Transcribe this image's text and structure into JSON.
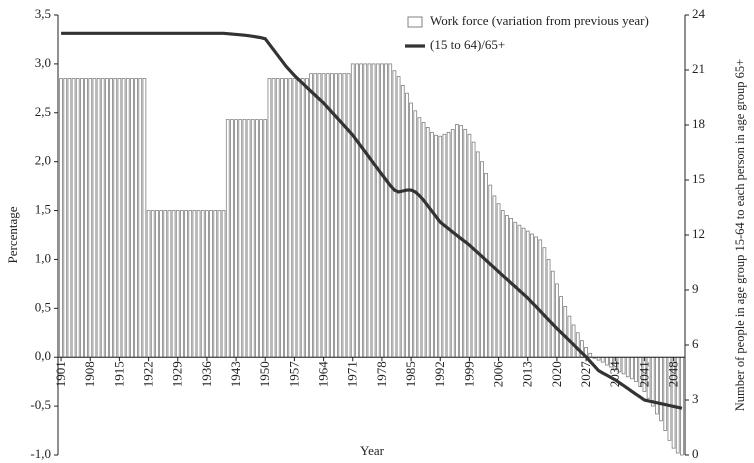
{
  "chart_data": {
    "type": "bar",
    "x_label": "Year",
    "y_label": "Percentage",
    "y2_label": "Number of people in age group 15-64 to each person in age group 65+",
    "categories": [
      "1901",
      null,
      null,
      null,
      null,
      null,
      null,
      "1908",
      null,
      null,
      null,
      null,
      null,
      null,
      "1915",
      null,
      null,
      null,
      null,
      null,
      null,
      "1922",
      null,
      null,
      null,
      null,
      null,
      null,
      "1929",
      null,
      null,
      null,
      null,
      null,
      null,
      "1936",
      null,
      null,
      null,
      null,
      null,
      null,
      "1943",
      null,
      null,
      null,
      null,
      null,
      null,
      "1950",
      null,
      null,
      null,
      null,
      null,
      null,
      "1957",
      null,
      null,
      null,
      null,
      null,
      null,
      "1964",
      null,
      null,
      null,
      null,
      null,
      null,
      "1971",
      null,
      null,
      null,
      null,
      null,
      null,
      "1978",
      null,
      null,
      null,
      null,
      null,
      null,
      "1985",
      null,
      null,
      null,
      null,
      null,
      null,
      "1992",
      null,
      null,
      null,
      null,
      null,
      null,
      "1999",
      null,
      null,
      null,
      null,
      null,
      null,
      "2006",
      null,
      null,
      null,
      null,
      null,
      null,
      "2013",
      null,
      null,
      null,
      null,
      null,
      null,
      "2020",
      null,
      null,
      null,
      null,
      null,
      null,
      "2027",
      null,
      null,
      null,
      null,
      null,
      null,
      "2034",
      null,
      null,
      null,
      null,
      null,
      null,
      "2041",
      null,
      null,
      null,
      null,
      null,
      null,
      "2048",
      null,
      null
    ],
    "series": [
      {
        "name": "Work force (variation from previous year)",
        "type": "bar",
        "color": "#808080",
        "values": [
          2.85,
          2.85,
          2.85,
          2.85,
          2.85,
          2.85,
          2.85,
          2.85,
          2.85,
          2.85,
          2.85,
          2.85,
          2.85,
          2.85,
          2.85,
          2.85,
          2.85,
          2.85,
          2.85,
          2.85,
          2.85,
          1.5,
          1.5,
          1.5,
          1.5,
          1.5,
          1.5,
          1.5,
          1.5,
          1.5,
          1.5,
          1.5,
          1.5,
          1.5,
          1.5,
          1.5,
          1.5,
          1.5,
          1.5,
          1.5,
          2.43,
          2.43,
          2.43,
          2.43,
          2.43,
          2.43,
          2.43,
          2.43,
          2.43,
          2.43,
          2.85,
          2.85,
          2.85,
          2.85,
          2.85,
          2.85,
          2.85,
          2.85,
          2.85,
          2.85,
          2.9,
          2.9,
          2.9,
          2.9,
          2.9,
          2.9,
          2.9,
          2.9,
          2.9,
          2.9,
          3.0,
          3.0,
          3.0,
          3.0,
          3.0,
          3.0,
          3.0,
          3.0,
          3.0,
          3.0,
          2.93,
          2.87,
          2.78,
          2.7,
          2.6,
          2.52,
          2.45,
          2.4,
          2.35,
          2.3,
          2.27,
          2.26,
          2.28,
          2.3,
          2.33,
          2.38,
          2.37,
          2.33,
          2.28,
          2.2,
          2.1,
          2.0,
          1.88,
          1.76,
          1.65,
          1.57,
          1.5,
          1.45,
          1.42,
          1.38,
          1.35,
          1.32,
          1.29,
          1.26,
          1.23,
          1.2,
          1.12,
          1.0,
          0.88,
          0.75,
          0.62,
          0.52,
          0.42,
          0.33,
          0.25,
          0.17,
          0.1,
          0.04,
          -0.01,
          -0.03,
          -0.05,
          -0.08,
          -0.1,
          -0.13,
          -0.15,
          -0.17,
          -0.2,
          -0.22,
          -0.25,
          -0.3,
          -0.35,
          -0.42,
          -0.5,
          -0.58,
          -0.65,
          -0.75,
          -0.85,
          -0.93,
          -0.98,
          -1.0
        ]
      },
      {
        "name": "(15 to 64)/65+",
        "type": "line",
        "axis": "y2",
        "color": "#333333",
        "values": [
          23,
          23,
          23,
          23,
          23,
          23,
          23,
          23,
          23,
          23,
          23,
          23,
          23,
          23,
          23,
          23,
          23,
          23,
          23,
          23,
          23,
          23,
          23,
          23,
          23,
          23,
          23,
          23,
          23,
          23,
          23,
          23,
          23,
          23,
          23,
          23,
          23,
          23,
          23,
          23,
          22.98,
          22.96,
          22.94,
          22.92,
          22.9,
          22.87,
          22.84,
          22.8,
          22.76,
          22.7,
          22.4,
          22.1,
          21.8,
          21.5,
          21.2,
          20.95,
          20.7,
          20.48,
          20.27,
          20.05,
          19.83,
          19.62,
          19.41,
          19.2,
          18.95,
          18.7,
          18.45,
          18.2,
          17.95,
          17.7,
          17.45,
          17.14,
          16.83,
          16.53,
          16.22,
          15.91,
          15.61,
          15.3,
          15.0,
          14.7,
          14.45,
          14.35,
          14.4,
          14.45,
          14.45,
          14.35,
          14.15,
          13.9,
          13.6,
          13.3,
          13.0,
          12.7,
          12.52,
          12.34,
          12.16,
          11.98,
          11.8,
          11.63,
          11.45,
          11.24,
          11.04,
          10.83,
          10.62,
          10.41,
          10.21,
          10.0,
          9.79,
          9.59,
          9.38,
          9.18,
          8.97,
          8.77,
          8.56,
          8.32,
          8.09,
          7.85,
          7.61,
          7.37,
          7.14,
          6.9,
          6.68,
          6.46,
          6.24,
          6.02,
          5.79,
          5.57,
          5.35,
          5.1,
          4.85,
          4.6,
          4.47,
          4.35,
          4.22,
          4.1,
          3.94,
          3.79,
          3.63,
          3.47,
          3.31,
          3.16,
          3.0,
          2.95,
          2.9,
          2.85,
          2.8,
          2.75,
          2.7,
          2.65,
          2.6,
          2.55
        ]
      }
    ],
    "ylim": [
      -1.0,
      3.5
    ],
    "yticks": [
      {
        "value": -1.0,
        "label": "-1,0"
      },
      {
        "value": -0.5,
        "label": "-0,5"
      },
      {
        "value": 0,
        "label": "0,0"
      },
      {
        "value": 0.5,
        "label": "0,5"
      },
      {
        "value": 1.0,
        "label": "1,0"
      },
      {
        "value": 1.5,
        "label": "1,5"
      },
      {
        "value": 2.0,
        "label": "2,0"
      },
      {
        "value": 2.5,
        "label": "2,5"
      },
      {
        "value": 3.0,
        "label": "3,0"
      },
      {
        "value": 3.5,
        "label": "3,5"
      }
    ],
    "y2lim": [
      0,
      24
    ],
    "y2ticks": [
      0,
      3,
      6,
      9,
      12,
      15,
      18,
      21,
      24
    ],
    "legend": "top-right"
  }
}
